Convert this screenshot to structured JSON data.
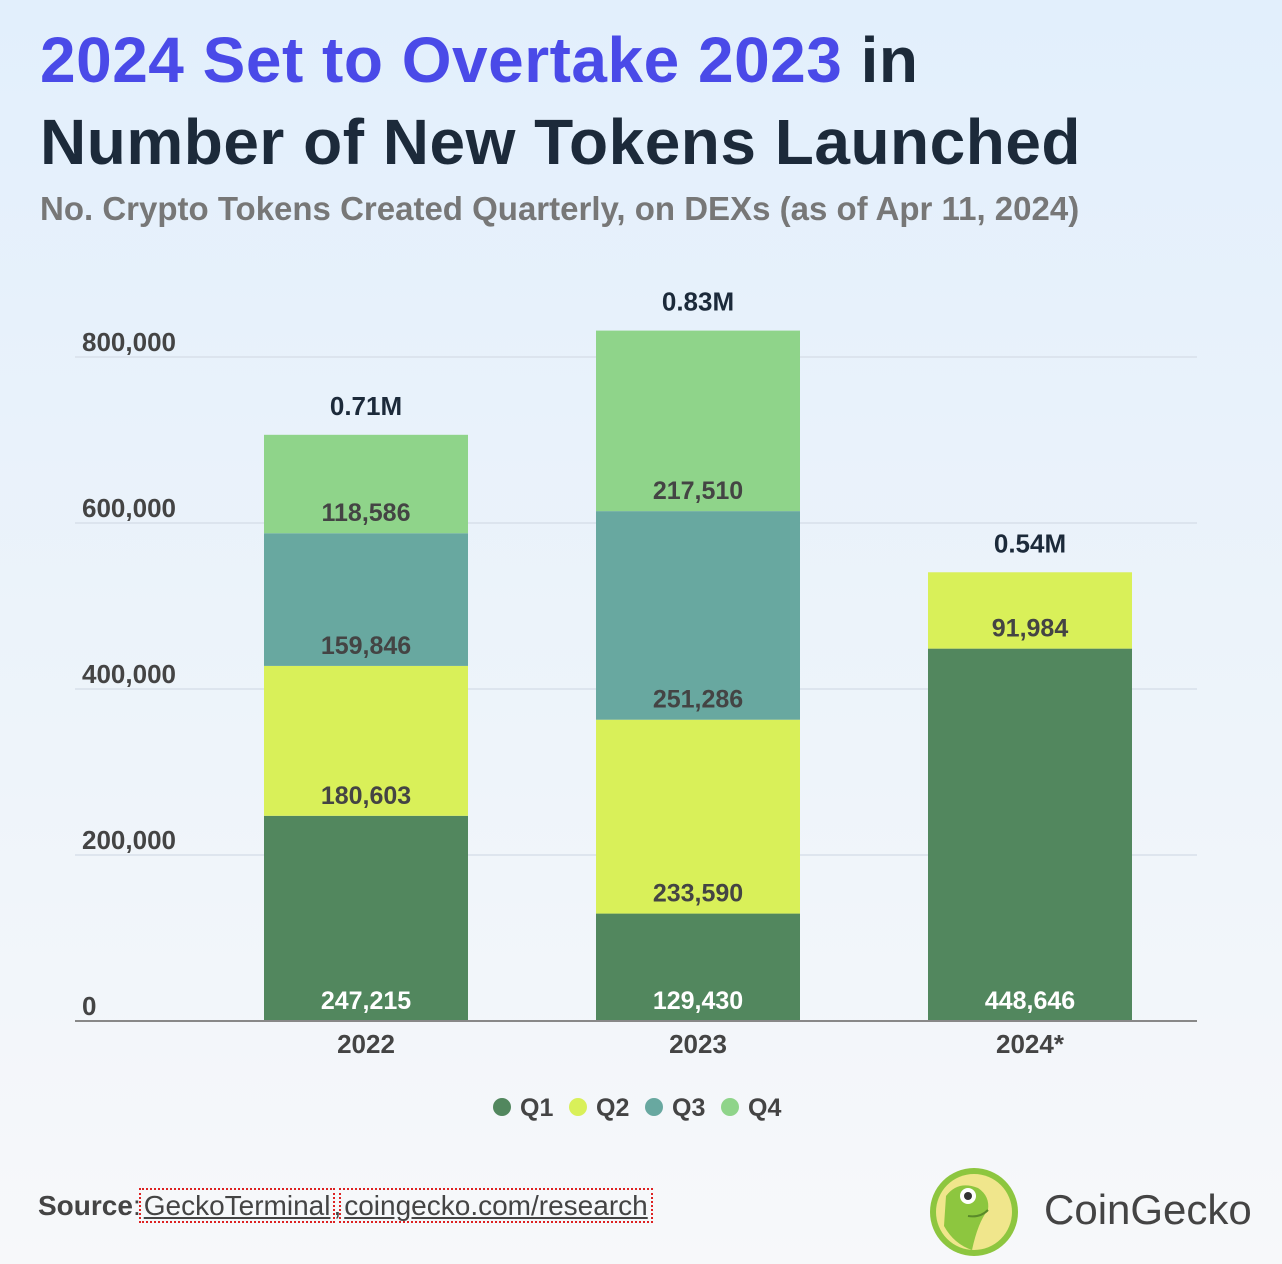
{
  "title": {
    "highlight": "2024 Set to Overtake 2023",
    "rest1": " in",
    "line2": "Number of New Tokens Launched"
  },
  "subtitle": "No. Crypto Tokens Created Quarterly, on DEXs (as of Apr 11, 2024)",
  "chart_data": {
    "type": "bar",
    "stacked": true,
    "categories": [
      "2022",
      "2023",
      "2024*"
    ],
    "series": [
      {
        "name": "Q1",
        "color": "#52875e",
        "values": [
          247215,
          129430,
          448646
        ],
        "labels": [
          "247,215",
          "129,430",
          "448,646"
        ]
      },
      {
        "name": "Q2",
        "color": "#d9f059",
        "values": [
          180603,
          233590,
          91984
        ],
        "labels": [
          "180,603",
          "233,590",
          "91,984"
        ]
      },
      {
        "name": "Q3",
        "color": "#68a8a0",
        "values": [
          159846,
          251286,
          null
        ],
        "labels": [
          "159,846",
          "251,286",
          ""
        ]
      },
      {
        "name": "Q4",
        "color": "#8fd48a",
        "values": [
          118586,
          217510,
          null
        ],
        "labels": [
          "118,586",
          "217,510",
          ""
        ]
      }
    ],
    "totals": [
      "0.71M",
      "0.83M",
      "0.54M"
    ],
    "yticks": [
      0,
      200000,
      400000,
      600000,
      800000
    ],
    "ytick_labels": [
      "0",
      "200,000",
      "400,000",
      "600,000",
      "800,000"
    ],
    "ylim": [
      0,
      800000
    ],
    "grid": true,
    "legend": "bottom-center"
  },
  "source": {
    "label": "Source",
    "links": [
      "GeckoTerminal",
      "coingecko.com/research"
    ]
  },
  "brand": "CoinGecko"
}
